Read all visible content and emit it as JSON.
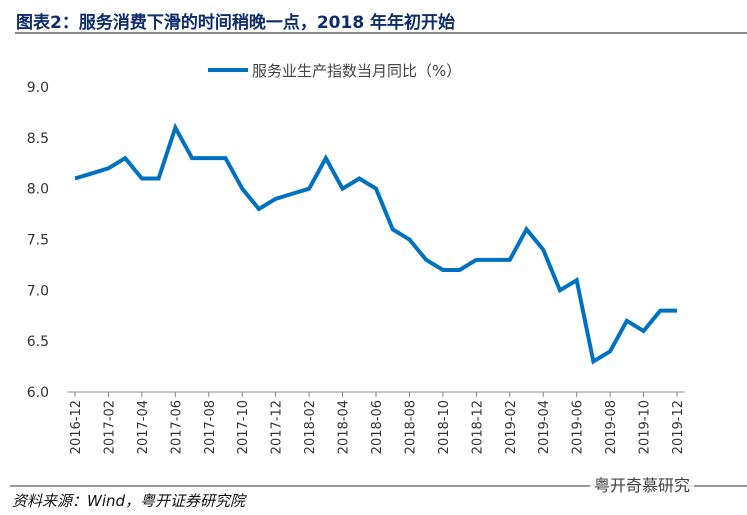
{
  "title": "图表2：服务消费下滑的时间稍晚一点，2018 年年初开始",
  "source": "资料来源：Wind，粤开证券研究院",
  "watermark": "粤开奇慕研究",
  "chart_data": {
    "type": "line",
    "title": "",
    "xlabel": "",
    "ylabel": "",
    "ylim": [
      6.0,
      9.0
    ],
    "yticks": [
      "6.0",
      "6.5",
      "7.0",
      "7.5",
      "8.0",
      "8.5",
      "9.0"
    ],
    "grid": false,
    "legend_position": "top",
    "x": [
      "2016-12",
      "2017-01",
      "2017-02",
      "2017-03",
      "2017-04",
      "2017-05",
      "2017-06",
      "2017-07",
      "2017-08",
      "2017-09",
      "2017-10",
      "2017-11",
      "2017-12",
      "2018-01",
      "2018-02",
      "2018-03",
      "2018-04",
      "2018-05",
      "2018-06",
      "2018-07",
      "2018-08",
      "2018-09",
      "2018-10",
      "2018-11",
      "2018-12",
      "2019-01",
      "2019-02",
      "2019-03",
      "2019-04",
      "2019-05",
      "2019-06",
      "2019-07",
      "2019-08",
      "2019-09",
      "2019-10",
      "2019-11",
      "2019-12"
    ],
    "xtick_labels": [
      "2016-12",
      "2017-02",
      "2017-04",
      "2017-06",
      "2017-08",
      "2017-10",
      "2017-12",
      "2018-02",
      "2018-04",
      "2018-06",
      "2018-08",
      "2018-10",
      "2018-12",
      "2019-02",
      "2019-04",
      "2019-06",
      "2019-08",
      "2019-10",
      "2019-12"
    ],
    "series": [
      {
        "name": "服务业生产指数当月同比（%）",
        "color": "#0070c0",
        "values": [
          8.1,
          8.15,
          8.2,
          8.3,
          8.1,
          8.1,
          8.6,
          8.3,
          8.3,
          8.3,
          8.0,
          7.8,
          7.9,
          7.95,
          8.0,
          8.3,
          8.0,
          8.1,
          8.0,
          7.6,
          7.5,
          7.3,
          7.2,
          7.2,
          7.3,
          7.3,
          7.3,
          7.6,
          7.4,
          7.0,
          7.1,
          6.3,
          6.4,
          6.7,
          6.6,
          6.8,
          6.8
        ]
      }
    ]
  }
}
